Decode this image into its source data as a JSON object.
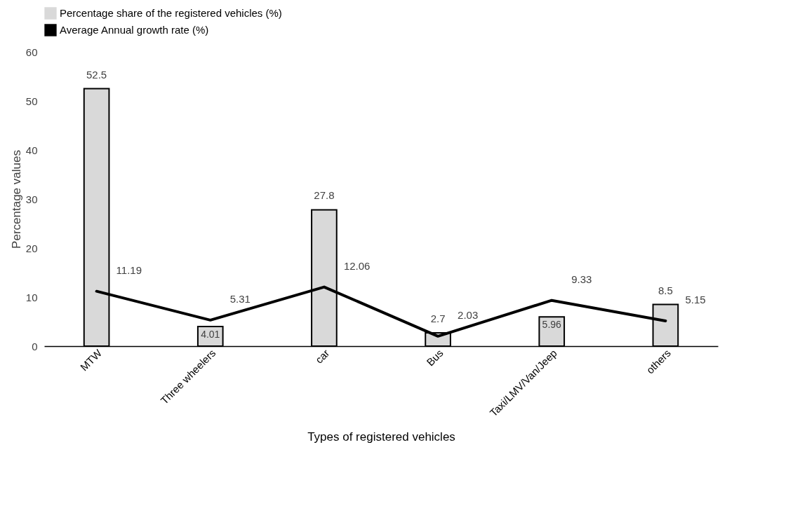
{
  "chart_data": {
    "type": "bar",
    "xlabel": "Types of registered vehicles",
    "ylabel": "Percentage values",
    "categories": [
      "MTW",
      "Three wheelers",
      "car",
      "Bus",
      "Taxi/LMV/Van/Jeep",
      "others"
    ],
    "series": [
      {
        "name": "Percentage share of the registered vehicles (%)",
        "color": "#d9d9d9",
        "values": [
          52.5,
          4.01,
          27.8,
          2.7,
          5.96,
          8.5
        ]
      },
      {
        "name": "Average Annual growth rate (%)",
        "type": "line",
        "color": "#000000",
        "values": [
          11.19,
          5.31,
          12.06,
          2.03,
          9.33,
          5.15
        ]
      }
    ],
    "ylim": [
      0,
      60
    ],
    "yticks": [
      0,
      10,
      20,
      30,
      40,
      50,
      60
    ],
    "data_labels": true,
    "legend": "top",
    "marker": "none",
    "line_style": "solid"
  }
}
